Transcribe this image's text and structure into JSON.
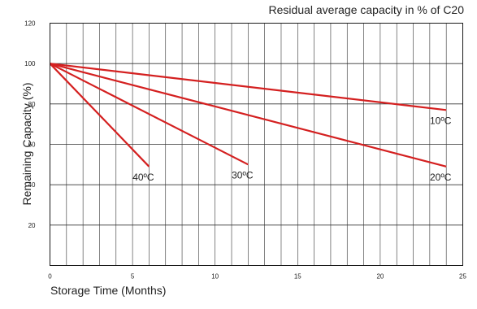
{
  "chart_data": {
    "type": "line",
    "title": "Residual average capacity in % of C20",
    "xlabel": "Storage Time (Months)",
    "ylabel": "Remaining Capacity (%)",
    "xlim": [
      0,
      25
    ],
    "ylim": [
      0,
      120
    ],
    "x_ticks": [
      0,
      5,
      10,
      15,
      20,
      25
    ],
    "y_ticks": [
      0,
      20,
      40,
      60,
      80,
      100,
      120
    ],
    "x_tick_labels": [
      "0",
      "5",
      "10",
      "15",
      "20",
      "25"
    ],
    "y_tick_labels": [
      "0",
      "20",
      "40",
      "60",
      "80",
      "100",
      "120"
    ],
    "grid": true,
    "line_color": "#d42020",
    "series": [
      {
        "name": "10ºC",
        "points": [
          [
            0,
            100
          ],
          [
            24,
            77
          ]
        ]
      },
      {
        "name": "20ºC",
        "points": [
          [
            0,
            100
          ],
          [
            24,
            49
          ]
        ]
      },
      {
        "name": "30ºC",
        "points": [
          [
            0,
            100
          ],
          [
            12,
            50
          ]
        ]
      },
      {
        "name": "40ºC",
        "points": [
          [
            0,
            100
          ],
          [
            6,
            49
          ]
        ]
      }
    ]
  }
}
